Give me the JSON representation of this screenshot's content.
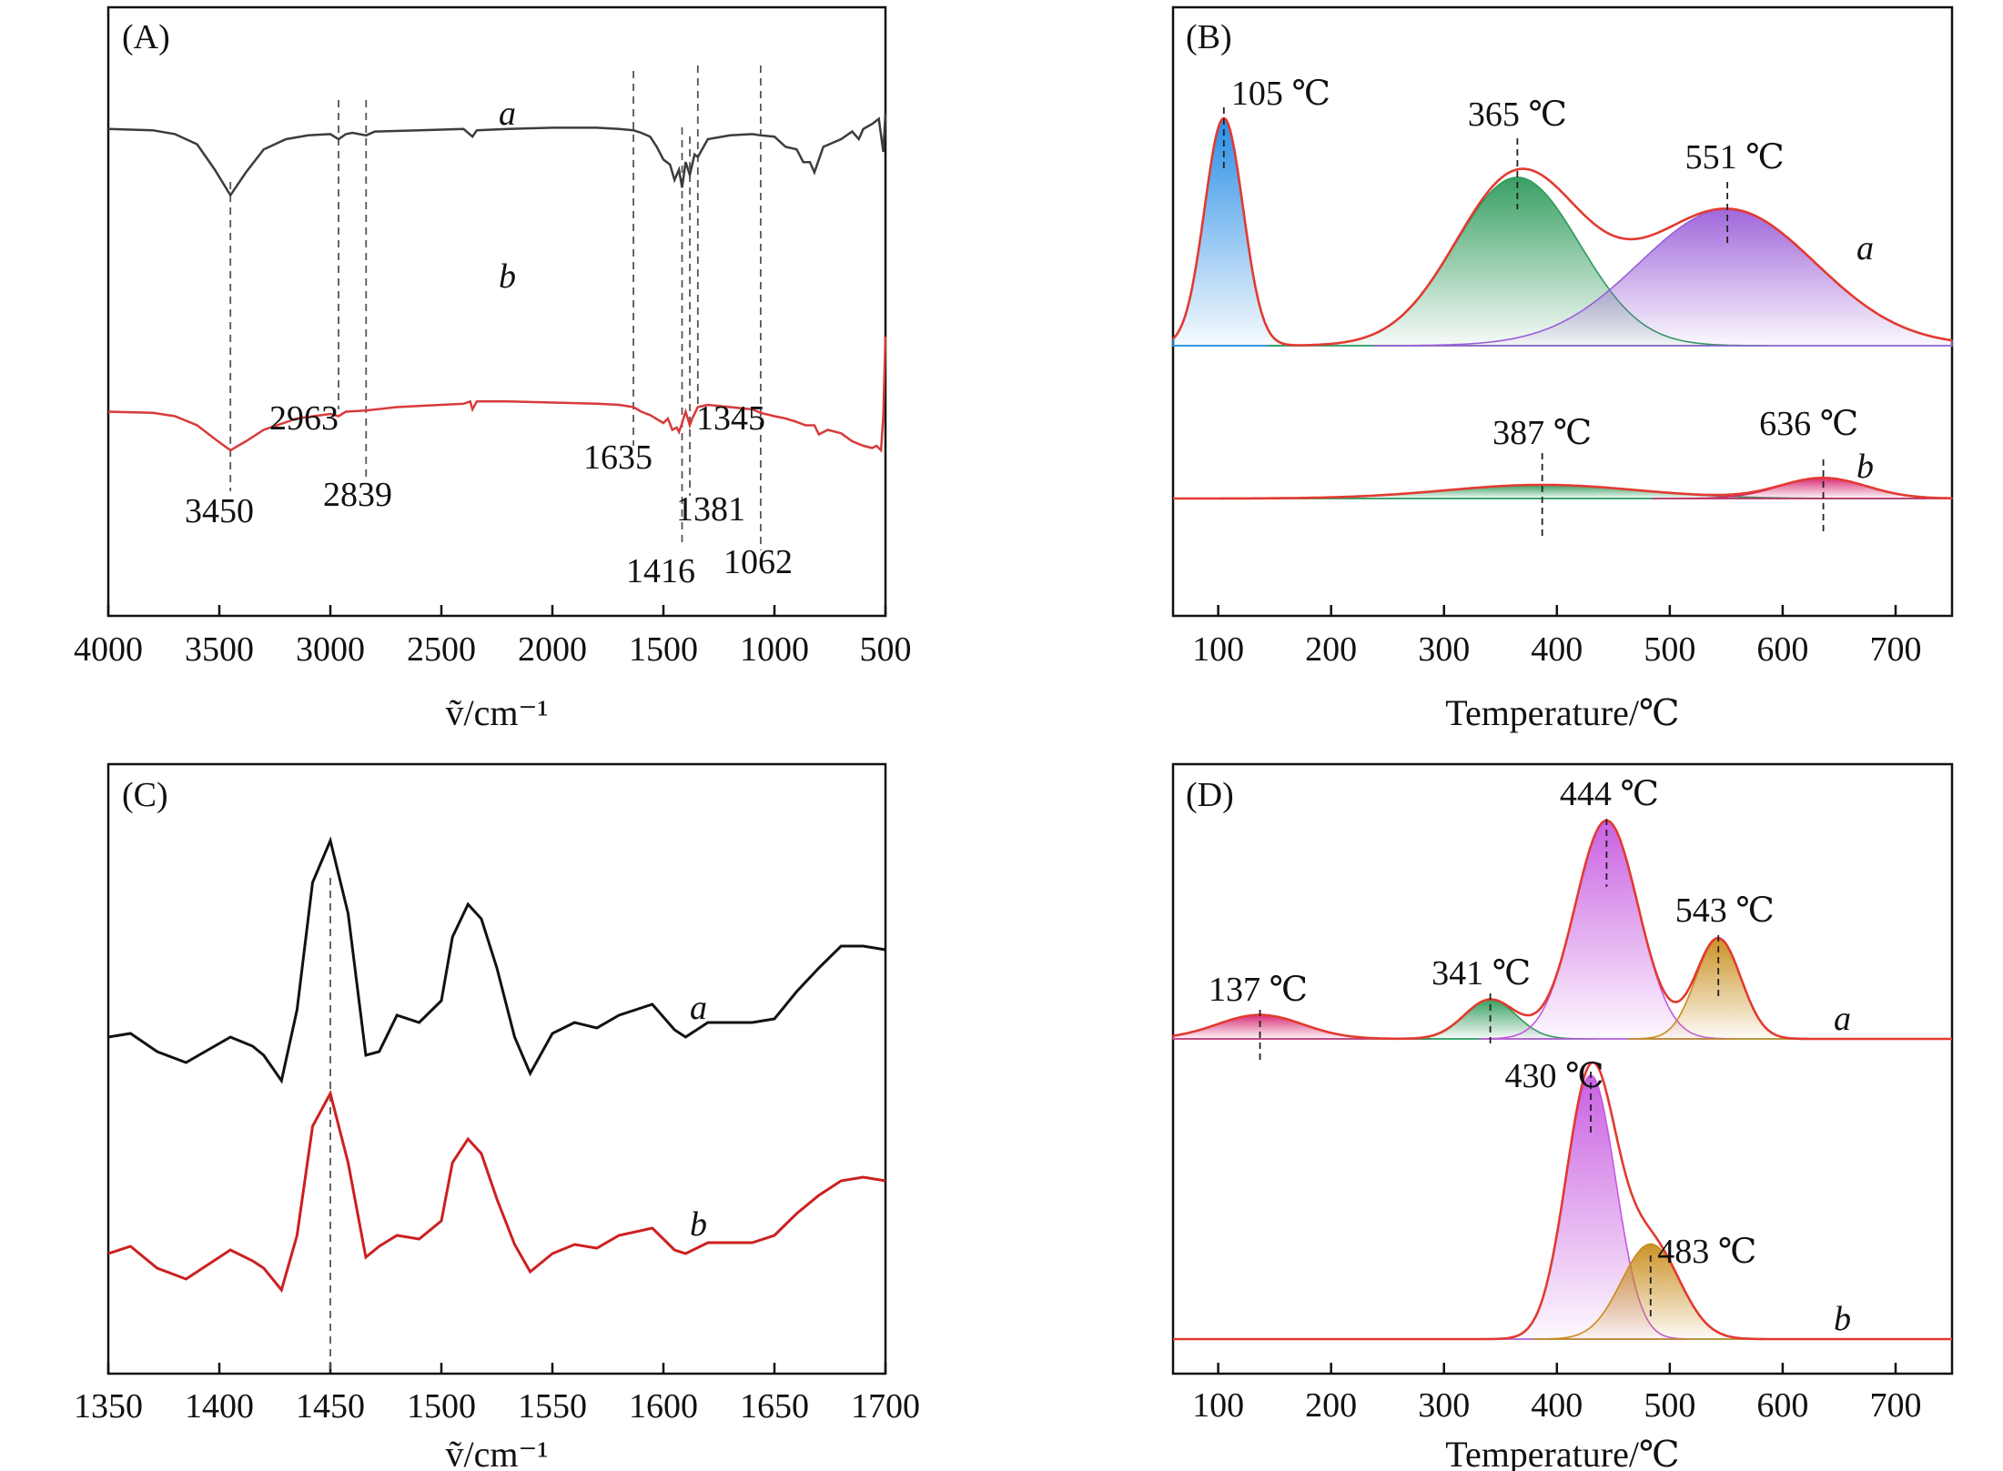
{
  "colors": {
    "black_curve": "#3c3c3c",
    "red_curve": "#d93a3a",
    "fit_red": "#e23a30",
    "blue": "#1e88e5",
    "green": "#2e9a5a",
    "purple": "#9b5fd8",
    "magenta": "#d6246e",
    "violet": "#c658e0",
    "gold": "#c88c1a"
  },
  "chart_data": [
    {
      "panel": "A",
      "type": "line",
      "label": "(A)",
      "xlabel": "ṽ/cm⁻¹",
      "xlim": [
        4000,
        500
      ],
      "xticks": [
        "4000",
        "3500",
        "3000",
        "2500",
        "2000",
        "1500",
        "1000",
        "500"
      ],
      "series": [
        {
          "name": "a",
          "label": "a",
          "color": "#3c3c3c",
          "x": [
            4000,
            3800,
            3700,
            3600,
            3520,
            3450,
            3380,
            3300,
            3200,
            3100,
            3000,
            2963,
            2930,
            2900,
            2839,
            2800,
            2600,
            2400,
            2360,
            2340,
            2200,
            2000,
            1800,
            1700,
            1635,
            1600,
            1560,
            1530,
            1500,
            1470,
            1450,
            1430,
            1416,
            1400,
            1381,
            1360,
            1345,
            1300,
            1200,
            1100,
            1062,
            1000,
            950,
            900,
            870,
            840,
            820,
            780,
            700,
            650,
            620,
            600,
            560,
            530,
            510,
            500
          ],
          "y": [
            88,
            87,
            84,
            76,
            56,
            36,
            54,
            72,
            80,
            83,
            84,
            80,
            84,
            85,
            83,
            86,
            87,
            88,
            82,
            87,
            88,
            89,
            89,
            88,
            87,
            85,
            82,
            74,
            64,
            60,
            48,
            56,
            42,
            62,
            52,
            68,
            66,
            80,
            83,
            84,
            83,
            82,
            74,
            72,
            62,
            62,
            54,
            74,
            80,
            86,
            80,
            88,
            92,
            96,
            70,
            100
          ]
        },
        {
          "name": "b",
          "label": "b",
          "color": "#d93a3a",
          "x": [
            4000,
            3800,
            3700,
            3600,
            3520,
            3450,
            3380,
            3300,
            3150,
            3000,
            2963,
            2930,
            2839,
            2700,
            2500,
            2400,
            2370,
            2360,
            2340,
            2200,
            2000,
            1800,
            1700,
            1635,
            1600,
            1560,
            1500,
            1480,
            1460,
            1440,
            1430,
            1416,
            1400,
            1381,
            1370,
            1345,
            1300,
            1200,
            1100,
            1062,
            1000,
            950,
            900,
            860,
            820,
            800,
            760,
            700,
            650,
            600,
            560,
            540,
            520,
            510,
            500
          ],
          "y": [
            34,
            33,
            30,
            22,
            10,
            0,
            8,
            18,
            28,
            32,
            30,
            34,
            35,
            38,
            40,
            41,
            43,
            36,
            43,
            43,
            42,
            41,
            40,
            38,
            34,
            31,
            24,
            28,
            18,
            20,
            16,
            24,
            34,
            22,
            28,
            38,
            40,
            38,
            36,
            33,
            30,
            28,
            25,
            22,
            22,
            14,
            18,
            15,
            8,
            4,
            2,
            4,
            0,
            30,
            100
          ]
        }
      ],
      "dashed_lines": [
        3450,
        2963,
        2839,
        1635,
        1416,
        1381,
        1345,
        1062
      ],
      "annotations": [
        "3450",
        "2963",
        "2839",
        "1635",
        "1416",
        "1381",
        "1345",
        "1062"
      ]
    },
    {
      "panel": "B",
      "type": "area",
      "label": "(B)",
      "xlabel": "Temperature/℃",
      "xlim": [
        60,
        750
      ],
      "xticks": [
        100,
        200,
        300,
        400,
        500,
        600,
        700
      ],
      "series": [
        {
          "name": "a",
          "label": "a",
          "fit_color": "#e23a30",
          "peaks": [
            {
              "center": 105,
              "height": 100,
              "sigma": 17,
              "color": "#1e88e5",
              "label": "105 ℃"
            },
            {
              "center": 365,
              "height": 74,
              "sigma": 55,
              "color": "#2e9a5a",
              "label": "365 ℃"
            },
            {
              "center": 551,
              "height": 60,
              "sigma": 78,
              "color": "#9b5fd8",
              "label": "551 ℃"
            }
          ]
        },
        {
          "name": "b",
          "label": "b",
          "fit_color": "#e23a30",
          "peaks": [
            {
              "center": 387,
              "height": 6,
              "sigma": 85,
              "color": "#2e9a5a",
              "label": "387 ℃"
            },
            {
              "center": 636,
              "height": 9,
              "sigma": 38,
              "color": "#d6246e",
              "label": "636 ℃"
            }
          ]
        }
      ]
    },
    {
      "panel": "C",
      "type": "line",
      "label": "(C)",
      "xlabel": "ṽ/cm⁻¹",
      "xlim": [
        1350,
        1700
      ],
      "xticks": [
        1350,
        1400,
        1450,
        1500,
        1550,
        1600,
        1650,
        1700
      ],
      "dashed_lines": [
        1450
      ],
      "series": [
        {
          "name": "a",
          "label": "a",
          "color": "#111111",
          "x": [
            1350,
            1360,
            1372,
            1385,
            1395,
            1405,
            1415,
            1420,
            1428,
            1435,
            1442,
            1450,
            1458,
            1466,
            1472,
            1480,
            1490,
            1500,
            1505,
            1512,
            1518,
            1525,
            1533,
            1540,
            1550,
            1560,
            1570,
            1580,
            1595,
            1605,
            1610,
            1620,
            1640,
            1650,
            1660,
            1670,
            1680,
            1690,
            1700
          ],
          "y": [
            100,
            102,
            92,
            86,
            93,
            100,
            95,
            90,
            76,
            115,
            185,
            208,
            168,
            90,
            92,
            112,
            108,
            120,
            155,
            173,
            165,
            138,
            100,
            80,
            102,
            108,
            105,
            112,
            118,
            104,
            100,
            108,
            108,
            110,
            125,
            138,
            150,
            150,
            148
          ]
        },
        {
          "name": "b",
          "label": "b",
          "color": "#cc2020",
          "x": [
            1350,
            1360,
            1372,
            1385,
            1395,
            1405,
            1415,
            1420,
            1428,
            1435,
            1442,
            1450,
            1458,
            1466,
            1472,
            1480,
            1490,
            1500,
            1505,
            1512,
            1518,
            1525,
            1533,
            1540,
            1550,
            1560,
            1570,
            1580,
            1595,
            1605,
            1610,
            1620,
            1640,
            1650,
            1660,
            1670,
            1680,
            1690,
            1700
          ],
          "y": [
            100,
            104,
            92,
            86,
            94,
            102,
            96,
            92,
            80,
            110,
            170,
            188,
            150,
            98,
            104,
            110,
            108,
            118,
            150,
            163,
            155,
            130,
            105,
            90,
            100,
            105,
            103,
            110,
            114,
            102,
            100,
            106,
            106,
            110,
            122,
            132,
            140,
            142,
            140
          ]
        }
      ]
    },
    {
      "panel": "D",
      "type": "area",
      "label": "(D)",
      "xlabel": "Temperature/℃",
      "xlim": [
        60,
        750
      ],
      "xticks": [
        100,
        200,
        300,
        400,
        500,
        600,
        700
      ],
      "series": [
        {
          "name": "a",
          "label": "a",
          "fit_color": "#e23a30",
          "peaks": [
            {
              "center": 137,
              "height": 11,
              "sigma": 38,
              "color": "#d6246e",
              "label": "137 ℃"
            },
            {
              "center": 341,
              "height": 18,
              "sigma": 23,
              "color": "#2e9a5a",
              "label": "341 ℃"
            },
            {
              "center": 444,
              "height": 100,
              "sigma": 28,
              "color": "#c658e0",
              "label": "444 ℃"
            },
            {
              "center": 543,
              "height": 46,
              "sigma": 20,
              "color": "#c88c1a",
              "label": "543 ℃"
            }
          ]
        },
        {
          "name": "b",
          "label": "b",
          "fit_color": "#e23a30",
          "peaks": [
            {
              "center": 430,
              "height": 100,
              "sigma": 22,
              "color": "#c658e0",
              "label": "430 ℃"
            },
            {
              "center": 483,
              "height": 36,
              "sigma": 26,
              "color": "#c88c1a",
              "label": "483 ℃"
            }
          ]
        }
      ]
    }
  ]
}
